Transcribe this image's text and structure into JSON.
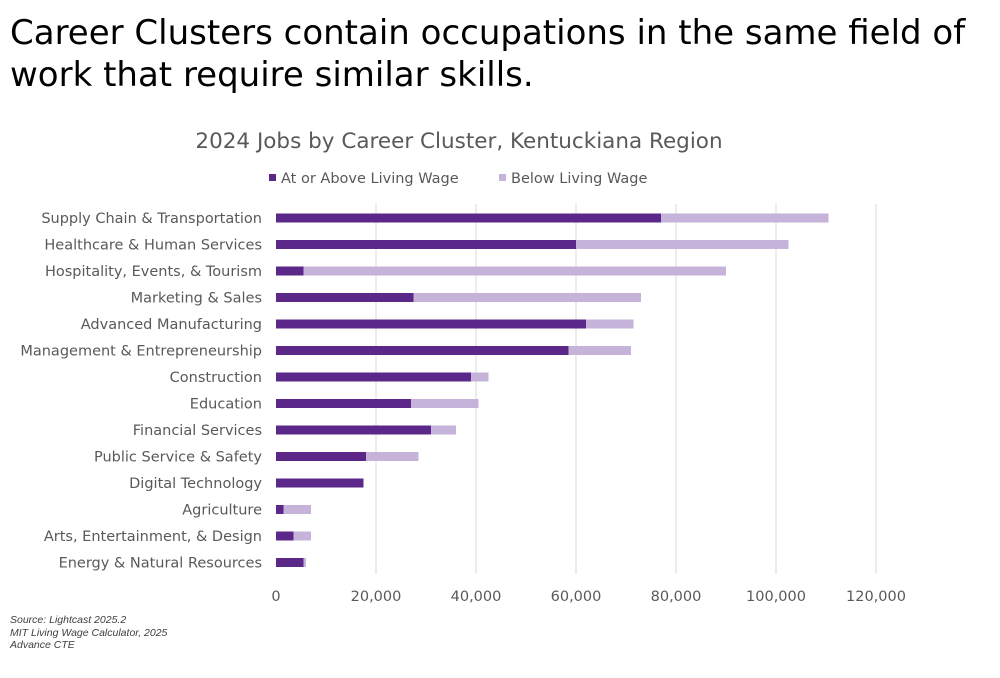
{
  "slide": {
    "headline": "Career Clusters contain occupations in the same field of work that require similar skills.",
    "sources": [
      "Source: Lightcast 2025.2",
      "MIT Living Wage Calculator, 2025",
      "Advance CTE"
    ]
  },
  "chart_data": {
    "type": "bar",
    "orientation": "horizontal",
    "stacked": true,
    "title": "2024 Jobs by Career Cluster, Kentuckiana Region",
    "legend_position": "top",
    "grid": true,
    "xlim": [
      0,
      120000
    ],
    "x_ticks": [
      "0",
      "20,000",
      "40,000",
      "60,000",
      "80,000",
      "100,000",
      "120,000"
    ],
    "x_tick_values": [
      0,
      20000,
      40000,
      60000,
      80000,
      100000,
      120000
    ],
    "categories": [
      "Supply Chain & Transportation",
      "Healthcare & Human Services",
      "Hospitality, Events, & Tourism",
      "Marketing & Sales",
      "Advanced Manufacturing",
      "Management & Entrepreneurship",
      "Construction",
      "Education",
      "Financial Services",
      "Public Service & Safety",
      "Digital Technology",
      "Agriculture",
      "Arts, Entertainment, & Design",
      "Energy & Natural Resources"
    ],
    "series": [
      {
        "name": "At or Above Living Wage",
        "color": "#5b2889",
        "values": [
          77000,
          60000,
          5500,
          27500,
          62000,
          58500,
          39000,
          27000,
          31000,
          18000,
          17500,
          1500,
          3500,
          5500
        ]
      },
      {
        "name": "Below Living Wage",
        "color": "#c5b3d9",
        "values": [
          33500,
          42500,
          84500,
          45500,
          9500,
          12500,
          3500,
          13500,
          5000,
          10500,
          0,
          5500,
          3500,
          500
        ]
      }
    ]
  }
}
